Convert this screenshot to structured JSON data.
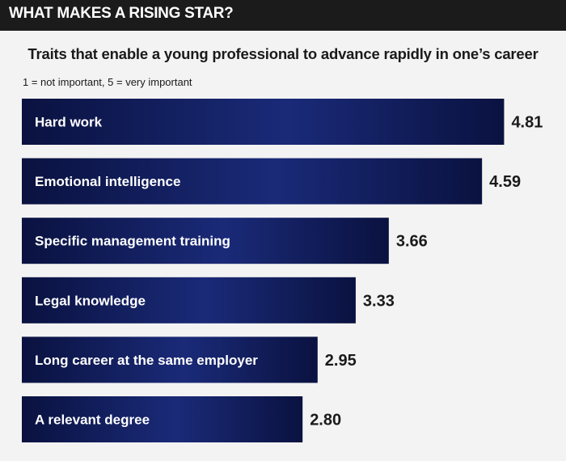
{
  "header": {
    "title": "WHAT MAKES A RISING STAR?"
  },
  "colors": {
    "bar_dark": "#0a1240",
    "bar_light": "#1a2a78",
    "header_bg": "#1b1b1b",
    "background": "#f3f3f3"
  },
  "chart_data": {
    "type": "bar",
    "orientation": "horizontal",
    "title": "Traits that enable a young professional to advance rapidly in one’s career",
    "subtitle": "1 = not important, 5 = very important",
    "categories": [
      "Hard work",
      "Emotional intelligence",
      "Specific management training",
      "Legal knowledge",
      "Long career at the same employer",
      "A relevant degree"
    ],
    "values": [
      4.81,
      4.59,
      3.66,
      3.33,
      2.95,
      2.8
    ],
    "value_labels": [
      "4.81",
      "4.59",
      "3.66",
      "3.33",
      "2.95",
      "2.80"
    ],
    "xlim": [
      0,
      5
    ],
    "grid": false,
    "legend": "none"
  }
}
